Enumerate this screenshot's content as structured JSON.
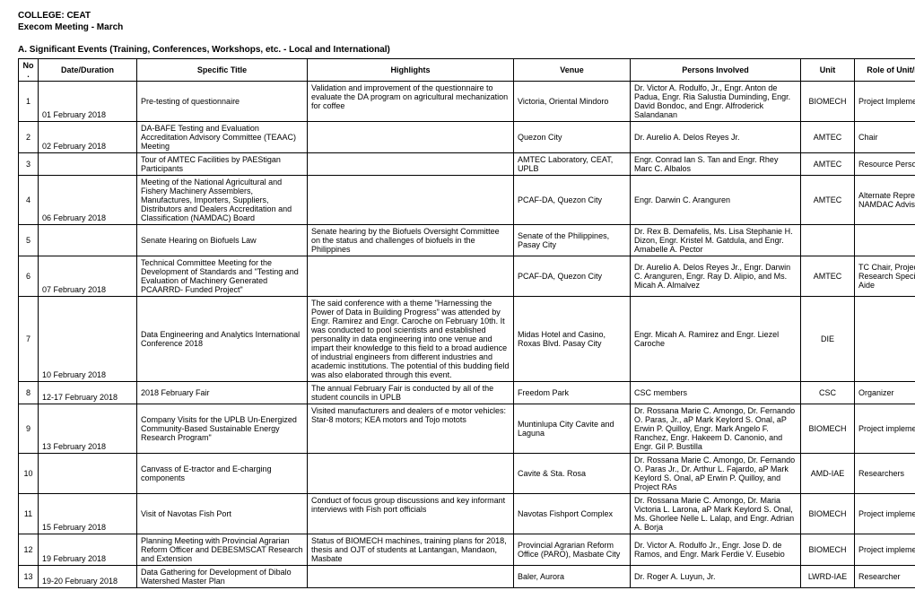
{
  "header": {
    "college": "COLLEGE: CEAT",
    "meeting": "Execom Meeting - March"
  },
  "section": "A. Significant Events (Training, Conferences, Workshops, etc. - Local and International)",
  "columns": [
    "No.",
    "Date/Duration",
    "Specific Title",
    "Highlights",
    "Venue",
    "Persons Involved",
    "Unit",
    "Role of Unit/Persons Involved"
  ],
  "rows": [
    {
      "no": "1",
      "date": "01 February 2018",
      "title": "Pre-testing of questionnaire",
      "highlights": "Validation and improvement of the questionnaire to evaluate  the DA program on agricultural mechanization for coffee",
      "venue": "Victoria, Oriental Mindoro",
      "persons": "Dr. Victor A. Rodulfo, Jr., Engr. Anton de Padua, Engr. Ria Salustia Duminding, Engr. David Bondoc, and Engr. Alfroderick Salandanan",
      "unit": "BIOMECH",
      "role": "Project Implementer"
    },
    {
      "no": "2",
      "date": "02 February 2018",
      "title": "DA-BAFE Testing and Evaluation Accreditation Advisory Committee (TEAAC) Meeting",
      "highlights": "",
      "venue": "Quezon City",
      "persons": "Dr. Aurelio A. Delos Reyes Jr.",
      "unit": "AMTEC",
      "role": "Chair"
    },
    {
      "no": "3",
      "date": "",
      "title": "Tour of AMTEC Facilities by PAEStigan Participants",
      "highlights": "",
      "venue": "AMTEC Laboratory, CEAT, UPLB",
      "persons": "Engr. Conrad Ian S. Tan and Engr. Rhey Marc C. Albalos",
      "unit": "AMTEC",
      "role": "Resource Persons"
    },
    {
      "no": "4",
      "date": "06 February 2018",
      "title": "Meeting of the National Agricultural and Fishery Machinery Assemblers, Manufactures, Importers, Suppliers, Distributors and Dealers Accreditation and Classification (NAMDAC) Board",
      "highlights": "",
      "venue": "PCAF-DA, Quezon City",
      "persons": "Engr. Darwin C. Aranguren",
      "unit": "AMTEC",
      "role": "Alternate Representative to the NAMDAC Advisory Body"
    },
    {
      "no": "5",
      "date": "",
      "title": "Senate Hearing on Biofuels Law",
      "highlights": "Senate hearing by the Biofuels Oversight Committee on the status and challenges of biofuels in the Philippines",
      "venue": "Senate of the Philippines, Pasay City",
      "persons": "Dr. Rex B. Demafelis, Ms. Lisa Stephanie H. Dizon, Engr. Kristel M. Gatdula, and Engr. Amabelle A. Pector",
      "unit": "",
      "role": ""
    },
    {
      "no": "6",
      "date": "07 February 2018",
      "title": "Technical Committee Meeting for the Development of Standards and \"Testing and Evaluation of Machinery Generated PCAARRD- Funded Project\"",
      "highlights": "",
      "venue": "PCAF-DA, Quezon City",
      "persons": "Dr. Aurelio A. Delos Reyes Jr., Engr. Darwin C. Aranguren, Engr. Ray D. Alipio, and Ms. Micah A. Almalvez",
      "unit": "AMTEC",
      "role": "TC Chair, Project Leader, Science Research Specialist, and Science Aide"
    },
    {
      "no": "7",
      "date": "10 February 2018",
      "title": "Data Engineering and Analytics International Conference 2018",
      "highlights": "The said conference with a theme \"Harnessing the Power of Data in Building Progress\" was attended by Engr. Ramirez and Engr. Caroche on February 10th. It was conducted to pool scientists and established personality in data engineering into one venue and impart their knowledge to this field to a broad audience of industrial engineers from different industries and academic institutions. The potential of this budding field was also elaborated through this event.",
      "venue": "Midas Hotel and Casino, Roxas Blvd. Pasay City",
      "persons": "Engr. Micah A. Ramirez and Engr. Liezel Caroche",
      "unit": "DIE",
      "role": ""
    },
    {
      "no": "8",
      "date": "12-17 February 2018",
      "title": "2018 February Fair",
      "highlights": "The annual February Fair is conducted by all of the student councils in UPLB",
      "venue": "Freedom Park",
      "persons": "CSC members",
      "unit": "CSC",
      "role": "Organizer"
    },
    {
      "no": "9",
      "date": "13 February 2018",
      "title": "Company Visits for the UPLB Un-Energized Community-Based Sustainable Energy Research Program\"",
      "highlights": "Visited manufacturers and dealers of e motor vehicles: Star-8 motors; KEA motors and Tojo motots",
      "venue": "Muntinlupa City Cavite and Laguna",
      "persons": "Dr. Rossana Marie C. Amongo, Dr. Fernando O. Paras, Jr., aP Mark Keylord S. Onal, aP Erwin P. Quilloy, Engr. Mark Angelo F. Ranchez, Engr. Hakeem D. Canonio, and Engr. Gil P. Bustilla",
      "unit": "BIOMECH",
      "role": "Project implementer"
    },
    {
      "no": "10",
      "date": "",
      "title": "Canvass of E-tractor and E-charging components",
      "highlights": "",
      "venue": "Cavite & Sta. Rosa",
      "persons": "Dr. Rossana Marie C. Amongo, Dr. Fernando O. Paras Jr., Dr. Arthur L. Fajardo, aP Mark Keylord S. Onal, aP Erwin P. Quilloy, and Project RAs",
      "unit": "AMD-IAE",
      "role": "Researchers"
    },
    {
      "no": "11",
      "date": "15 February 2018",
      "title": "Visit of Navotas Fish Port",
      "highlights": "Conduct of focus group discussions and key informant interviews with Fish port officials",
      "venue": "Navotas Fishport Complex",
      "persons": "Dr. Rossana Marie C. Amongo, Dr. Maria Victoria L. Larona, aP Mark Keylord S. Onal, Ms. Ghorlee Nelle L. Lalap, and Engr. Adrian A. Borja",
      "unit": "BIOMECH",
      "role": "Project implementer"
    },
    {
      "no": "12",
      "date": "19 February 2018",
      "title": "Planning Meeting with Provincial Agrarian Reform Officer and DEBESMSCAT Research and Extension",
      "highlights": "Status of BIOMECH machines, training plans for 2018, thesis and OJT of students at Lantangan, Mandaon, Masbate",
      "venue": "Provincial Agrarian Reform Office (PARO), Masbate City",
      "persons": "Dr. Victor A. Rodulfo Jr., Engr. Jose D. de Ramos, and Engr. Mark Ferdie V. Eusebio",
      "unit": "BIOMECH",
      "role": "Project implementer"
    },
    {
      "no": "13",
      "date": "19-20 February 2018",
      "title": "Data Gathering for Development of Dibalo Watershed Master Plan",
      "highlights": "",
      "venue": "Baler, Aurora",
      "persons": "Dr. Roger A. Luyun, Jr.",
      "unit": "LWRD-IAE",
      "role": "Researcher"
    }
  ]
}
